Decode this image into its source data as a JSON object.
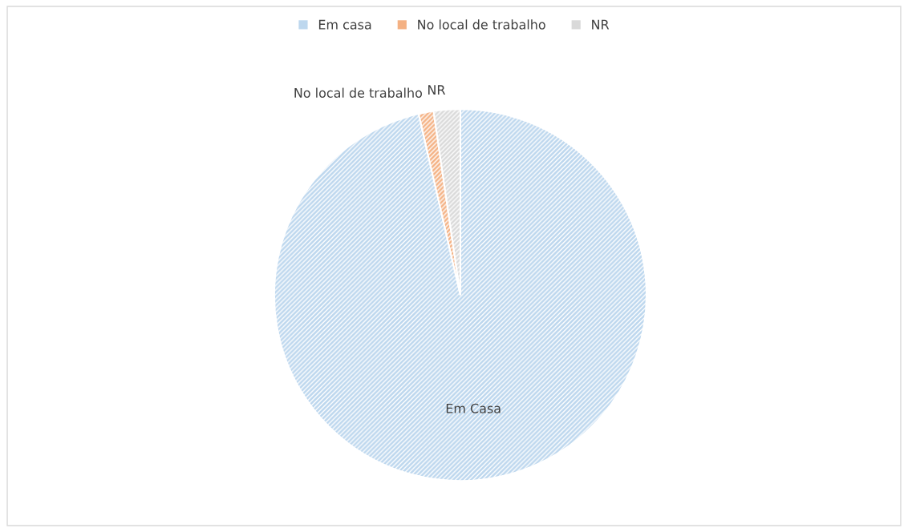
{
  "chart_data": {
    "type": "pie",
    "categories": [
      "Em casa",
      "No local de trabalho",
      "NR"
    ],
    "values": [
      96.4,
      1.3,
      2.3
    ],
    "colors": [
      "#bdd7ee",
      "#f4b183",
      "#d9d9d9"
    ],
    "value_labels": [
      "Em Casa",
      "No local de trabalho",
      "NR"
    ],
    "legend": "top"
  }
}
